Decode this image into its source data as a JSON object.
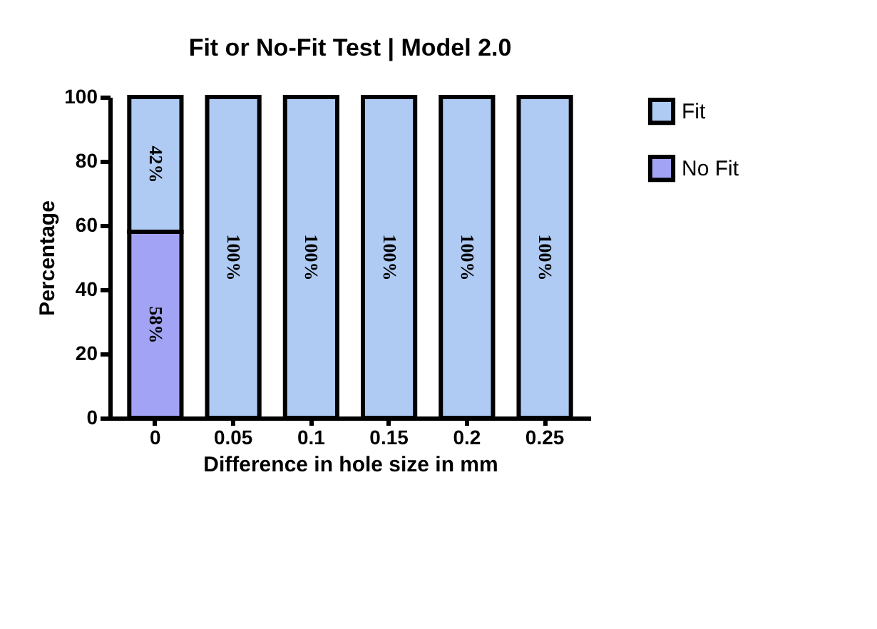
{
  "chart_data": {
    "type": "bar",
    "title": "Fit or No-Fit Test | Model 2.0",
    "xlabel": "Difference in hole size in mm",
    "ylabel": "Percentage",
    "categories": [
      "0",
      "0.05",
      "0.1",
      "0.15",
      "0.2",
      "0.25"
    ],
    "stacked": true,
    "series": [
      {
        "name": "No Fit",
        "color": "#a3a3f5",
        "values": [
          58,
          null,
          null,
          null,
          null,
          null
        ],
        "value_labels": [
          "58%",
          null,
          null,
          null,
          null,
          null
        ]
      },
      {
        "name": "Fit",
        "color": "#afcbf3",
        "values": [
          42,
          100,
          100,
          100,
          100,
          100
        ],
        "value_labels": [
          "42%",
          "100%",
          "100%",
          "100%",
          "100%",
          "100%"
        ]
      }
    ],
    "ylim": [
      0,
      100
    ],
    "yticks": [
      0,
      20,
      40,
      60,
      80,
      100
    ],
    "grid": false,
    "legend": "top right"
  }
}
